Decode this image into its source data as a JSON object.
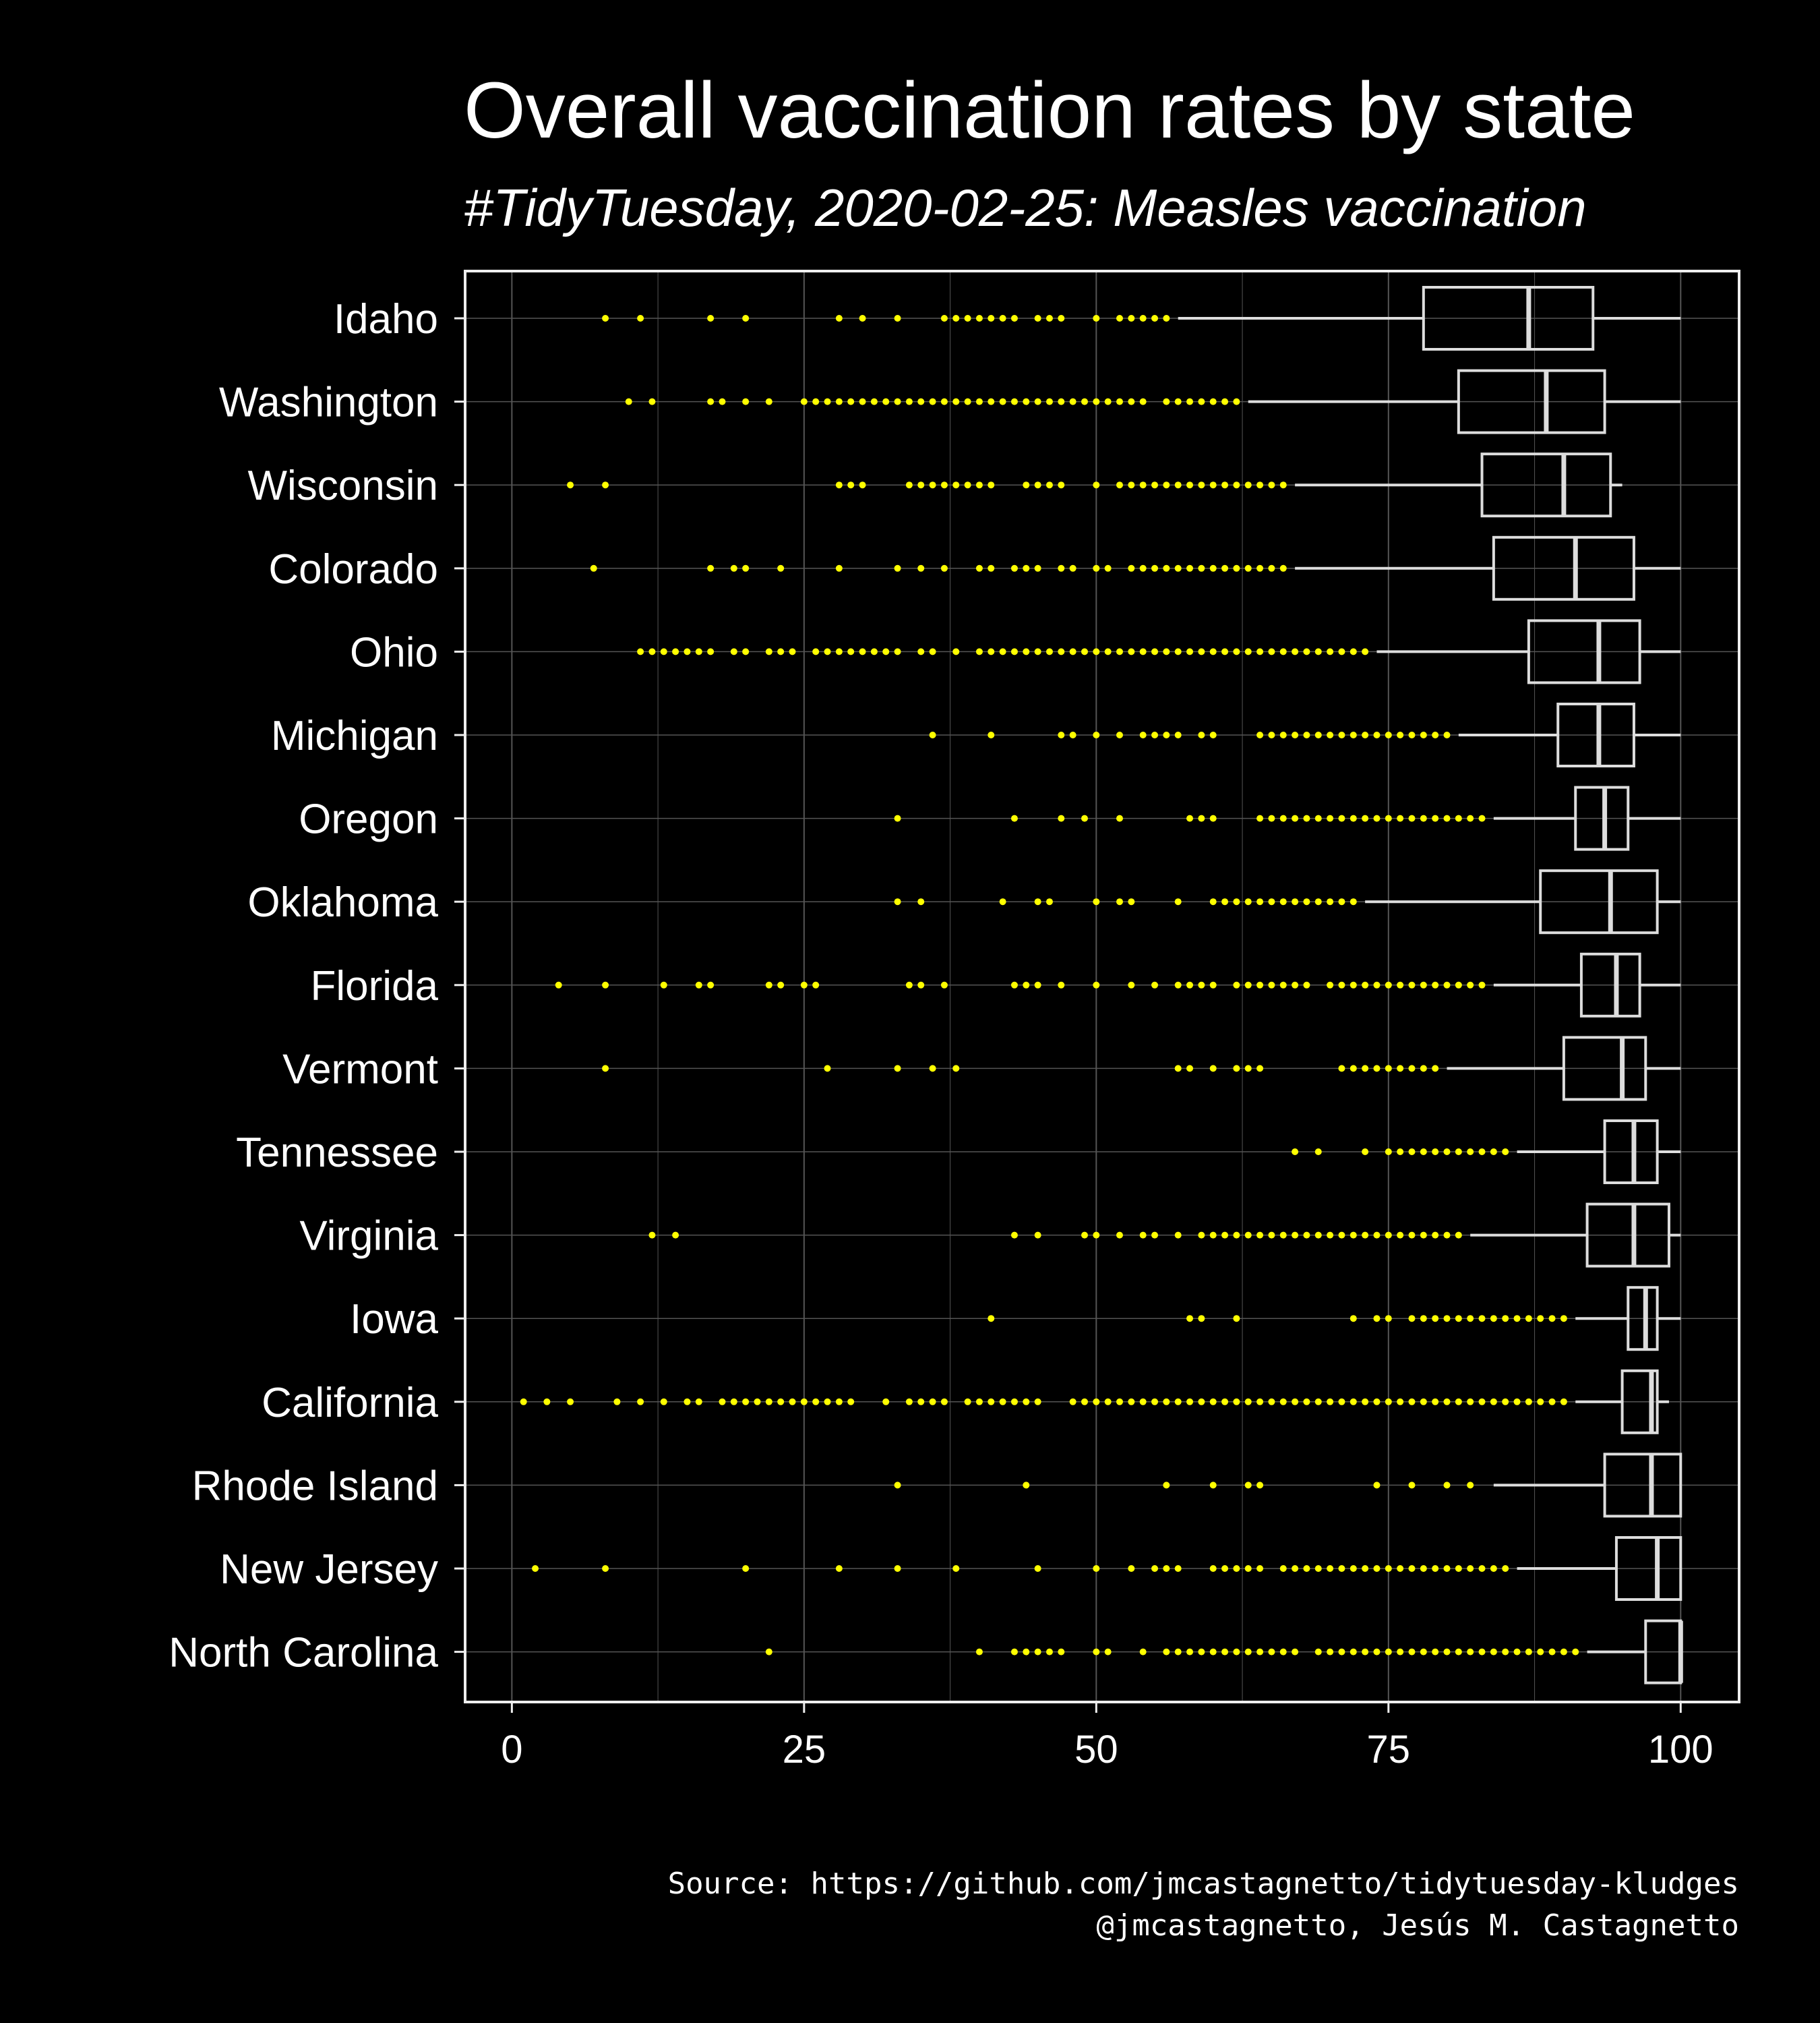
{
  "colors": {
    "background": "#000000",
    "text": "#ffffff",
    "outlier": "#ffff00",
    "box": "#dddddd",
    "grid": "#555555"
  },
  "chart_data": {
    "type": "boxplot",
    "title": "Overall vaccination rates by state",
    "subtitle": "#TidyTuesday, 2020-02-25: Measles vaccination",
    "xlim": [
      -4,
      105
    ],
    "x_ticks": [
      0,
      25,
      50,
      75,
      100
    ],
    "grid": true,
    "caption": [
      "Source: https://github.com/jmcastagnetto/tidytuesday-kludges",
      "@jmcastagnetto, Jesús M. Castagnetto"
    ],
    "states": [
      {
        "name": "Idaho",
        "whisker_low": 57,
        "q1": 78,
        "median": 87,
        "q3": 92.5,
        "whisker_high": 100,
        "outliers": [
          8,
          11,
          17,
          20,
          28,
          30,
          33,
          37,
          38,
          39,
          40,
          41,
          42,
          43,
          45,
          46,
          47,
          50,
          52,
          53,
          54,
          55,
          56
        ]
      },
      {
        "name": "Washington",
        "whisker_low": 63,
        "q1": 81,
        "median": 88.5,
        "q3": 93.5,
        "whisker_high": 100,
        "outliers": [
          10,
          12,
          17,
          18,
          20,
          22,
          25,
          26,
          27,
          28,
          29,
          30,
          31,
          32,
          33,
          34,
          35,
          36,
          37,
          38,
          39,
          40,
          41,
          42,
          43,
          44,
          45,
          46,
          47,
          48,
          49,
          50,
          51,
          52,
          53,
          54,
          56,
          57,
          58,
          59,
          60,
          61,
          62
        ]
      },
      {
        "name": "Wisconsin",
        "whisker_low": 67,
        "q1": 83,
        "median": 90,
        "q3": 94,
        "whisker_high": 95,
        "outliers": [
          5,
          8,
          28,
          29,
          30,
          34,
          35,
          36,
          37,
          38,
          39,
          40,
          41,
          44,
          45,
          46,
          47,
          50,
          52,
          53,
          54,
          55,
          56,
          57,
          58,
          59,
          60,
          61,
          62,
          63,
          64,
          65,
          66
        ]
      },
      {
        "name": "Colorado",
        "whisker_low": 67,
        "q1": 84,
        "median": 91,
        "q3": 96,
        "whisker_high": 100,
        "outliers": [
          7,
          17,
          19,
          20,
          23,
          28,
          33,
          35,
          37,
          40,
          41,
          43,
          44,
          45,
          47,
          48,
          50,
          51,
          53,
          54,
          55,
          56,
          57,
          58,
          59,
          60,
          61,
          62,
          63,
          64,
          65,
          66
        ]
      },
      {
        "name": "Ohio",
        "whisker_low": 74,
        "q1": 87,
        "median": 93,
        "q3": 96.5,
        "whisker_high": 100,
        "outliers": [
          11,
          12,
          13,
          14,
          15,
          16,
          17,
          19,
          20,
          22,
          23,
          24,
          26,
          27,
          28,
          29,
          30,
          31,
          32,
          33,
          35,
          36,
          38,
          40,
          41,
          42,
          43,
          44,
          45,
          46,
          47,
          48,
          49,
          50,
          51,
          52,
          53,
          54,
          55,
          56,
          57,
          58,
          59,
          60,
          61,
          62,
          63,
          64,
          65,
          66,
          67,
          68,
          69,
          70,
          71,
          72,
          73
        ]
      },
      {
        "name": "Michigan",
        "whisker_low": 81,
        "q1": 89.5,
        "median": 93,
        "q3": 96,
        "whisker_high": 100,
        "outliers": [
          36,
          41,
          47,
          48,
          50,
          52,
          54,
          55,
          56,
          57,
          59,
          60,
          64,
          65,
          66,
          67,
          68,
          69,
          70,
          71,
          72,
          73,
          74,
          75,
          76,
          77,
          78,
          79,
          80
        ]
      },
      {
        "name": "Oregon",
        "whisker_low": 84,
        "q1": 91,
        "median": 93.5,
        "q3": 95.5,
        "whisker_high": 100,
        "outliers": [
          33,
          43,
          47,
          49,
          52,
          58,
          59,
          60,
          64,
          65,
          66,
          67,
          68,
          69,
          70,
          71,
          72,
          73,
          74,
          75,
          76,
          77,
          78,
          79,
          80,
          81,
          82,
          83
        ]
      },
      {
        "name": "Oklahoma",
        "whisker_low": 73,
        "q1": 88,
        "median": 94,
        "q3": 98,
        "whisker_high": 100,
        "outliers": [
          33,
          35,
          42,
          45,
          46,
          50,
          52,
          53,
          57,
          60,
          61,
          62,
          63,
          64,
          65,
          66,
          67,
          68,
          69,
          70,
          71,
          72
        ]
      },
      {
        "name": "Florida",
        "whisker_low": 84,
        "q1": 91.5,
        "median": 94.5,
        "q3": 96.5,
        "whisker_high": 100,
        "outliers": [
          4,
          8,
          13,
          16,
          17,
          22,
          23,
          25,
          26,
          34,
          35,
          37,
          43,
          44,
          45,
          47,
          50,
          53,
          55,
          57,
          58,
          59,
          60,
          62,
          63,
          64,
          65,
          66,
          67,
          68,
          70,
          71,
          72,
          73,
          74,
          75,
          76,
          77,
          78,
          79,
          80,
          81,
          82,
          83
        ]
      },
      {
        "name": "Vermont",
        "whisker_low": 80,
        "q1": 90,
        "median": 95,
        "q3": 97,
        "whisker_high": 100,
        "outliers": [
          8,
          27,
          33,
          36,
          38,
          57,
          58,
          60,
          62,
          63,
          64,
          71,
          72,
          73,
          74,
          75,
          76,
          77,
          78,
          79
        ]
      },
      {
        "name": "Tennessee",
        "whisker_low": 86,
        "q1": 93.5,
        "median": 96,
        "q3": 98,
        "whisker_high": 100,
        "outliers": [
          67,
          69,
          73,
          75,
          76,
          77,
          78,
          79,
          80,
          81,
          82,
          83,
          84,
          85
        ]
      },
      {
        "name": "Virginia",
        "whisker_low": 82,
        "q1": 92,
        "median": 96,
        "q3": 99,
        "whisker_high": 100,
        "outliers": [
          12,
          14,
          43,
          45,
          49,
          50,
          52,
          54,
          55,
          57,
          59,
          60,
          61,
          62,
          63,
          64,
          65,
          66,
          67,
          68,
          69,
          70,
          71,
          72,
          73,
          74,
          75,
          76,
          77,
          78,
          79,
          80,
          81
        ]
      },
      {
        "name": "Iowa",
        "whisker_low": 91,
        "q1": 95.5,
        "median": 97,
        "q3": 98,
        "whisker_high": 100,
        "outliers": [
          41,
          58,
          59,
          62,
          72,
          74,
          75,
          77,
          78,
          79,
          80,
          81,
          82,
          83,
          84,
          85,
          86,
          87,
          88,
          89,
          90
        ]
      },
      {
        "name": "California",
        "whisker_low": 91,
        "q1": 95,
        "median": 97.5,
        "q3": 98,
        "whisker_high": 99,
        "outliers": [
          1,
          3,
          5,
          9,
          11,
          13,
          15,
          16,
          18,
          19,
          20,
          21,
          22,
          23,
          24,
          25,
          26,
          27,
          28,
          29,
          32,
          34,
          35,
          36,
          37,
          39,
          40,
          41,
          42,
          43,
          44,
          45,
          48,
          49,
          50,
          51,
          52,
          53,
          54,
          55,
          56,
          57,
          58,
          59,
          60,
          61,
          62,
          63,
          64,
          65,
          66,
          67,
          68,
          69,
          70,
          71,
          72,
          73,
          74,
          75,
          76,
          77,
          78,
          79,
          80,
          81,
          82,
          83,
          84,
          85,
          86,
          87,
          88,
          89,
          90
        ]
      },
      {
        "name": "Rhode Island",
        "whisker_low": 84,
        "q1": 93.5,
        "median": 97.5,
        "q3": 100,
        "whisker_high": 100,
        "outliers": [
          33,
          44,
          56,
          60,
          63,
          64,
          74,
          77,
          80,
          82
        ]
      },
      {
        "name": "New Jersey",
        "whisker_low": 86,
        "q1": 94.5,
        "median": 98,
        "q3": 100,
        "whisker_high": 100,
        "outliers": [
          2,
          8,
          20,
          28,
          33,
          38,
          45,
          50,
          53,
          55,
          56,
          57,
          60,
          61,
          62,
          63,
          64,
          66,
          67,
          68,
          69,
          70,
          71,
          72,
          73,
          74,
          75,
          76,
          77,
          78,
          79,
          80,
          81,
          82,
          83,
          84,
          85
        ]
      },
      {
        "name": "North Carolina",
        "whisker_low": 92,
        "q1": 97,
        "median": 100,
        "q3": 100,
        "whisker_high": 100,
        "outliers": [
          22,
          40,
          43,
          44,
          45,
          46,
          47,
          50,
          51,
          54,
          56,
          57,
          58,
          59,
          60,
          61,
          62,
          63,
          64,
          65,
          66,
          67,
          69,
          70,
          71,
          72,
          73,
          74,
          75,
          76,
          77,
          78,
          79,
          80,
          81,
          82,
          83,
          84,
          85,
          86,
          87,
          88,
          89,
          90,
          91
        ]
      }
    ]
  }
}
